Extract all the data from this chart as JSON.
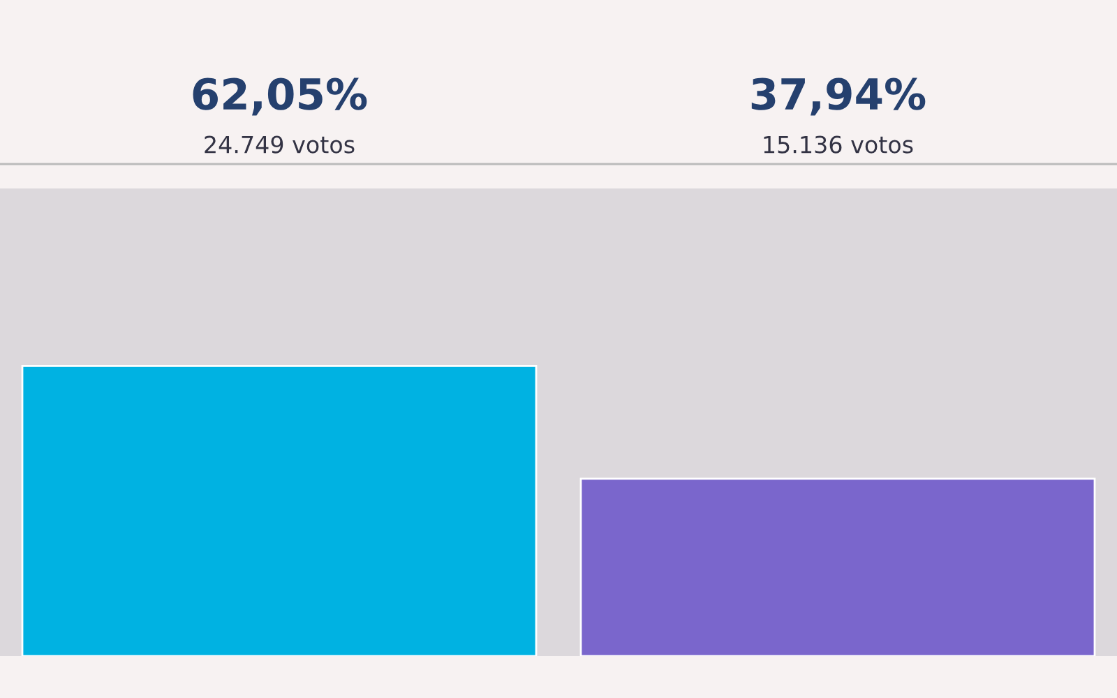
{
  "chart_data": {
    "type": "bar",
    "categories": [
      null,
      null
    ],
    "values": [
      62.05,
      37.94
    ],
    "colors": [
      "#00b2e2",
      "#7a66cc"
    ],
    "value_labels": [
      "62,05%",
      "37,94%"
    ],
    "annotations": [
      "24.749 votos",
      "15.136 votos"
    ],
    "ylim": [
      0,
      100
    ],
    "grid": false,
    "legend": false
  }
}
